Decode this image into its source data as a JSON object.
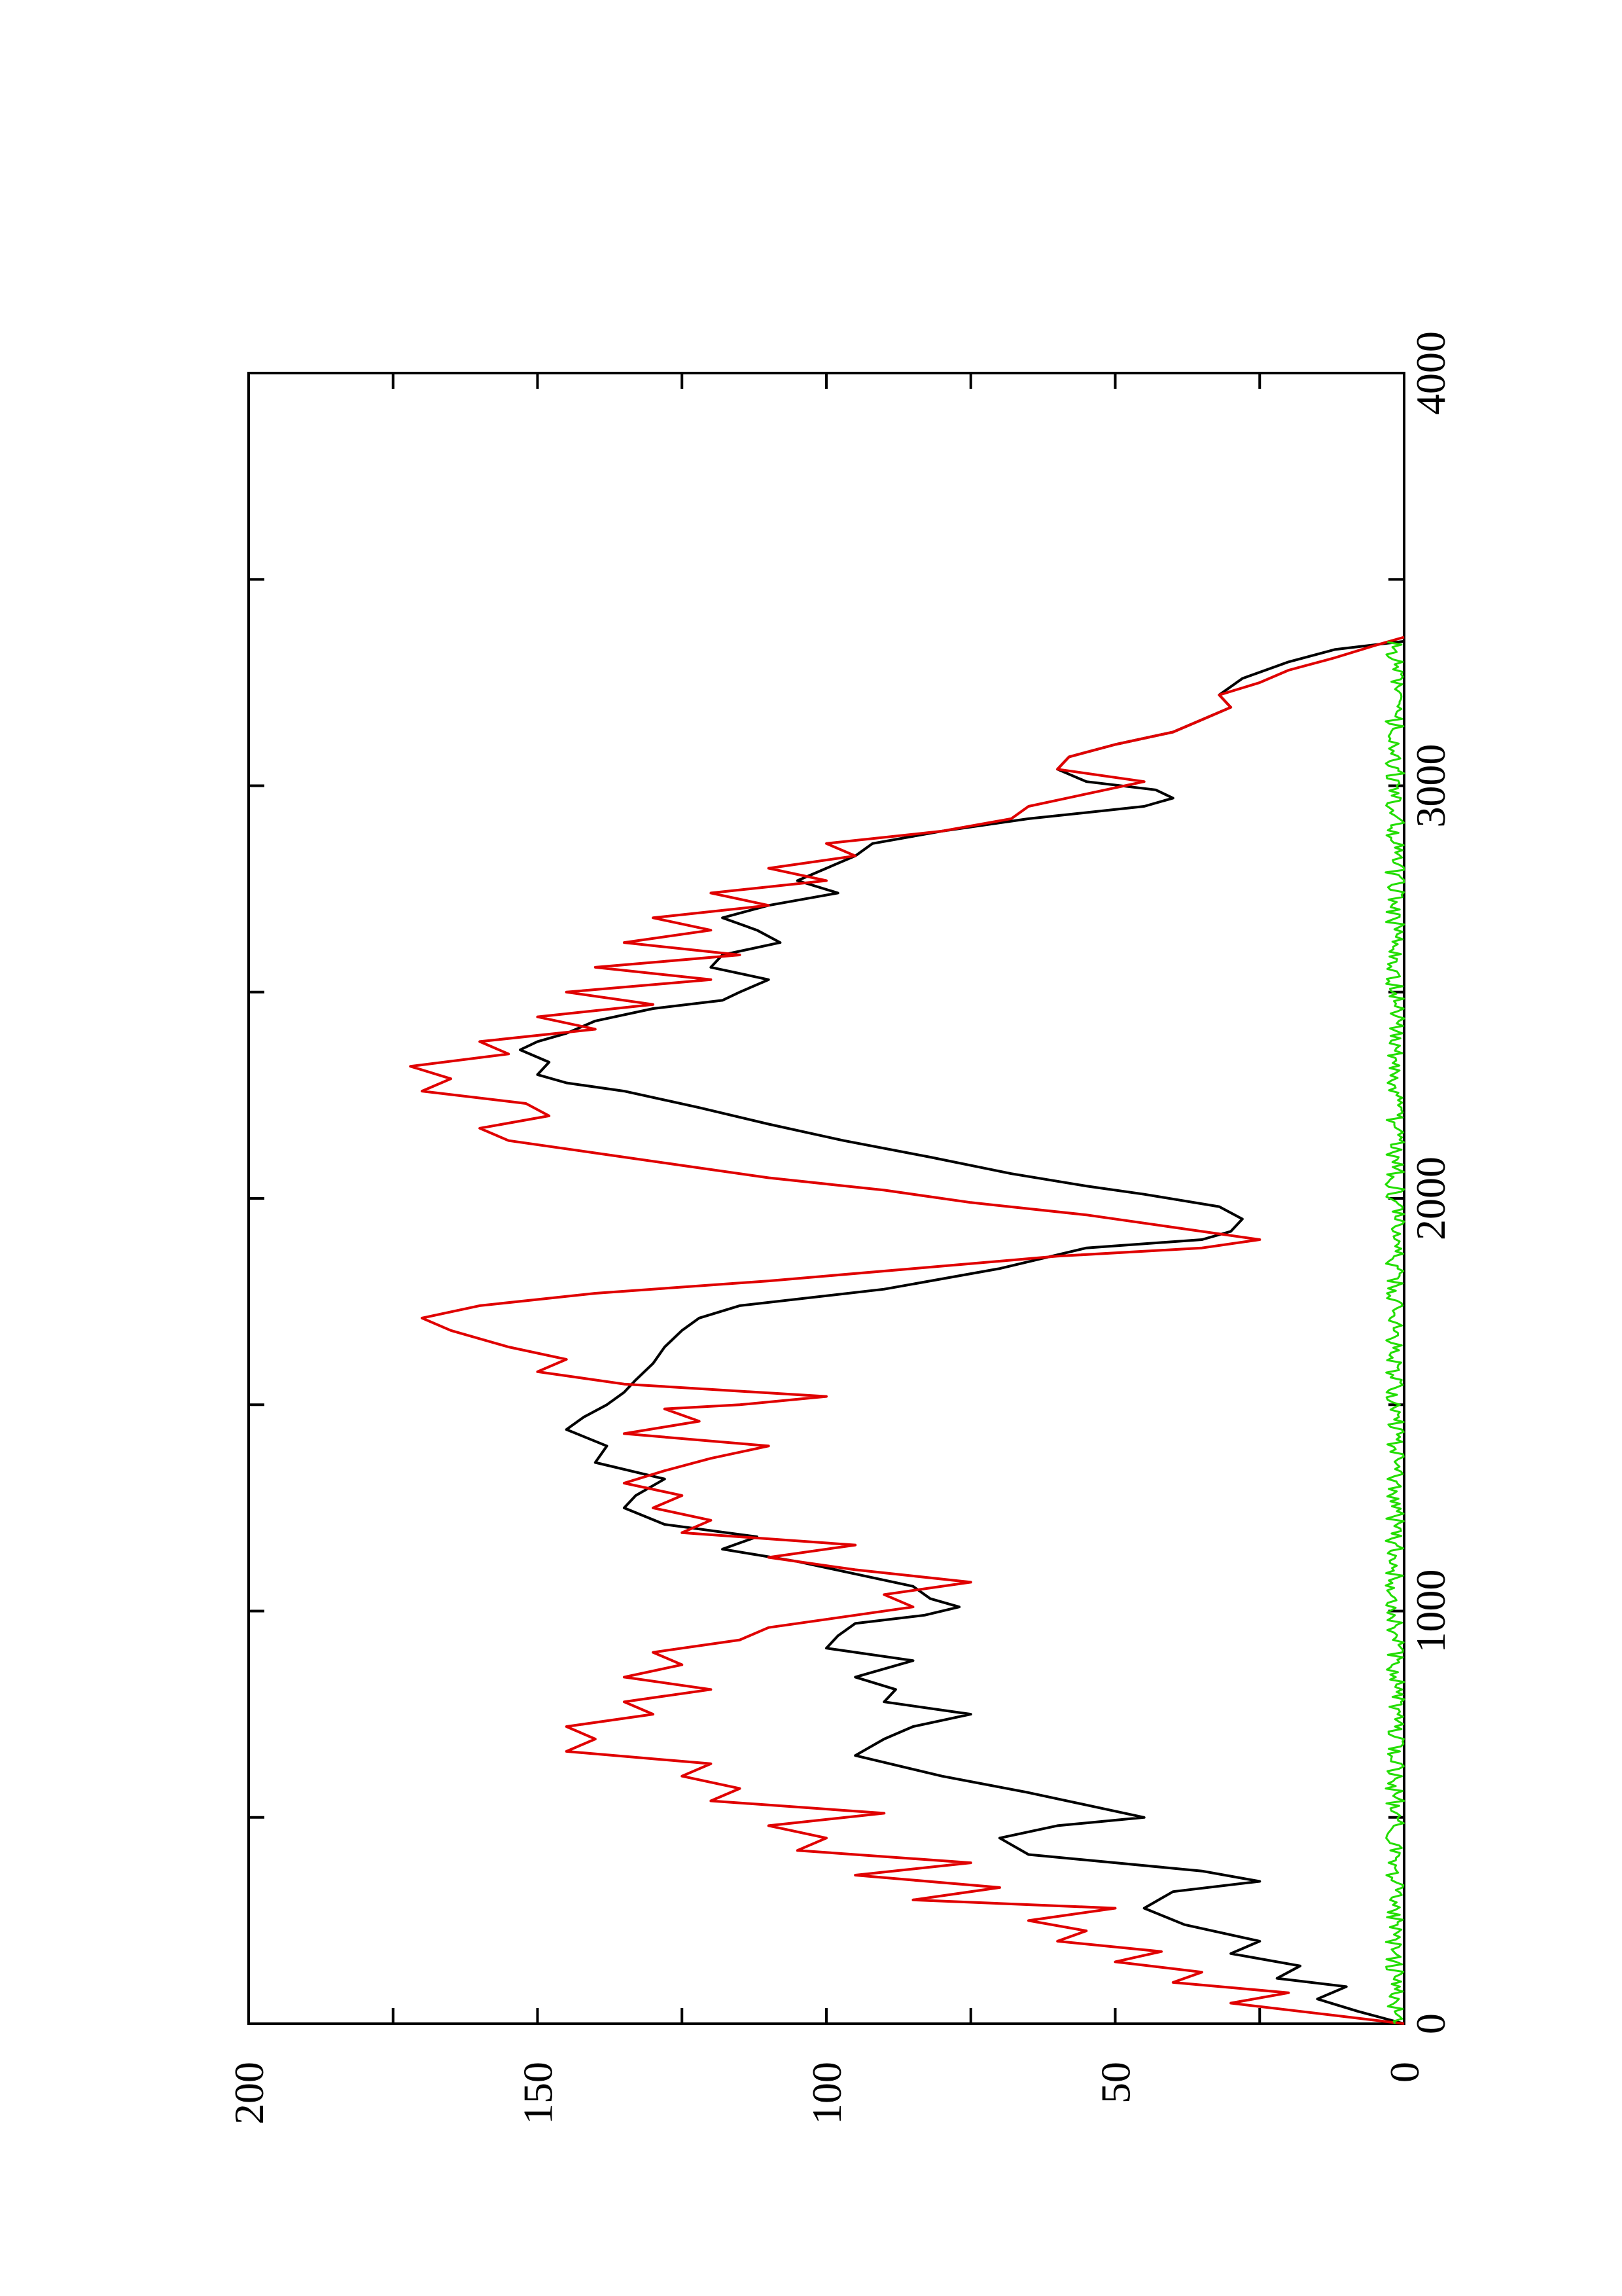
{
  "chart_data": {
    "type": "line",
    "orientation": "rotated-90-ccw",
    "title": "",
    "xlabel": "",
    "ylabel": "",
    "xlim": [
      0,
      4000
    ],
    "ylim": [
      0,
      200
    ],
    "x_ticks": [
      0,
      1000,
      2000,
      3000,
      4000
    ],
    "x_tick_labels": [
      "0",
      "1000",
      "2000",
      "3000",
      "4000"
    ],
    "x_minor_ticks": [
      500,
      1500,
      2500,
      3500
    ],
    "y_ticks": [
      0,
      50,
      100,
      150,
      200
    ],
    "y_tick_labels": [
      "0",
      "50",
      "100",
      "150",
      "200"
    ],
    "y_minor_ticks": [
      25,
      75,
      125,
      175
    ],
    "grid": false,
    "legend": "none",
    "series": [
      {
        "color": "#000000",
        "x": [
          0,
          30,
          60,
          90,
          110,
          140,
          170,
          200,
          240,
          280,
          320,
          345,
          370,
          410,
          450,
          480,
          500,
          530,
          560,
          600,
          650,
          690,
          720,
          750,
          780,
          810,
          840,
          880,
          910,
          940,
          970,
          990,
          1010,
          1030,
          1060,
          1090,
          1120,
          1150,
          1180,
          1210,
          1250,
          1280,
          1320,
          1360,
          1400,
          1440,
          1470,
          1500,
          1530,
          1560,
          1600,
          1640,
          1680,
          1710,
          1740,
          1780,
          1830,
          1880,
          1900,
          1920,
          1950,
          1980,
          2010,
          2030,
          2060,
          2100,
          2140,
          2180,
          2220,
          2260,
          2280,
          2300,
          2330,
          2360,
          2380,
          2400,
          2430,
          2460,
          2480,
          2500,
          2530,
          2560,
          2590,
          2620,
          2650,
          2680,
          2710,
          2740,
          2770,
          2800,
          2830,
          2860,
          2890,
          2920,
          2950,
          2970,
          2990,
          3010,
          3040,
          3070,
          3100,
          3130,
          3160,
          3190,
          3220,
          3260,
          3300,
          3330,
          3350
        ],
        "y": [
          0,
          8,
          15,
          10,
          22,
          18,
          30,
          25,
          38,
          45,
          40,
          25,
          35,
          65,
          70,
          60,
          45,
          55,
          65,
          80,
          95,
          90,
          85,
          75,
          90,
          88,
          95,
          85,
          100,
          98,
          95,
          83,
          77,
          82,
          85,
          95,
          105,
          118,
          112,
          128,
          135,
          133,
          128,
          140,
          138,
          145,
          142,
          138,
          135,
          133,
          130,
          128,
          125,
          122,
          115,
          90,
          70,
          55,
          35,
          30,
          28,
          32,
          45,
          55,
          68,
          82,
          97,
          110,
          122,
          135,
          145,
          150,
          148,
          153,
          150,
          145,
          140,
          130,
          118,
          115,
          110,
          120,
          118,
          108,
          112,
          118,
          110,
          98,
          105,
          100,
          95,
          92,
          80,
          65,
          45,
          40,
          43,
          55,
          60,
          58,
          50,
          40,
          35,
          30,
          32,
          28,
          20,
          12,
          0
        ]
      },
      {
        "color": "#e00000",
        "x": [
          0,
          25,
          50,
          75,
          100,
          125,
          150,
          175,
          200,
          225,
          250,
          280,
          300,
          330,
          360,
          390,
          420,
          450,
          480,
          510,
          540,
          570,
          600,
          630,
          660,
          690,
          720,
          750,
          780,
          810,
          840,
          870,
          900,
          930,
          960,
          990,
          1010,
          1040,
          1070,
          1100,
          1130,
          1160,
          1190,
          1220,
          1250,
          1280,
          1310,
          1340,
          1370,
          1400,
          1430,
          1460,
          1490,
          1500,
          1520,
          1550,
          1580,
          1610,
          1640,
          1680,
          1710,
          1740,
          1770,
          1800,
          1830,
          1860,
          1880,
          1900,
          1930,
          1960,
          1990,
          2020,
          2050,
          2080,
          2110,
          2140,
          2170,
          2200,
          2230,
          2260,
          2290,
          2320,
          2350,
          2380,
          2410,
          2440,
          2470,
          2500,
          2530,
          2560,
          2590,
          2620,
          2650,
          2680,
          2710,
          2740,
          2770,
          2800,
          2830,
          2860,
          2890,
          2920,
          2950,
          2980,
          3010,
          3040,
          3070,
          3100,
          3130,
          3160,
          3190,
          3220,
          3250,
          3280,
          3310,
          3340,
          3360
        ],
        "y": [
          0,
          15,
          30,
          20,
          40,
          35,
          50,
          42,
          60,
          55,
          65,
          50,
          85,
          70,
          95,
          75,
          105,
          100,
          110,
          90,
          120,
          115,
          125,
          120,
          145,
          140,
          145,
          130,
          135,
          120,
          135,
          125,
          130,
          115,
          110,
          95,
          85,
          90,
          75,
          95,
          110,
          95,
          125,
          120,
          130,
          125,
          135,
          128,
          120,
          110,
          135,
          122,
          128,
          115,
          100,
          135,
          150,
          145,
          155,
          165,
          170,
          160,
          140,
          110,
          85,
          60,
          35,
          25,
          40,
          55,
          75,
          90,
          110,
          125,
          140,
          155,
          160,
          148,
          152,
          170,
          165,
          172,
          155,
          160,
          140,
          150,
          130,
          145,
          120,
          140,
          115,
          135,
          120,
          130,
          110,
          120,
          100,
          110,
          95,
          100,
          80,
          68,
          65,
          55,
          45,
          60,
          58,
          50,
          40,
          35,
          30,
          32,
          25,
          20,
          12,
          5,
          0
        ]
      },
      {
        "color": "#22dd00",
        "x": [
          0,
          3350
        ],
        "y": [
          0,
          0
        ],
        "note": "noise band near zero"
      }
    ]
  }
}
